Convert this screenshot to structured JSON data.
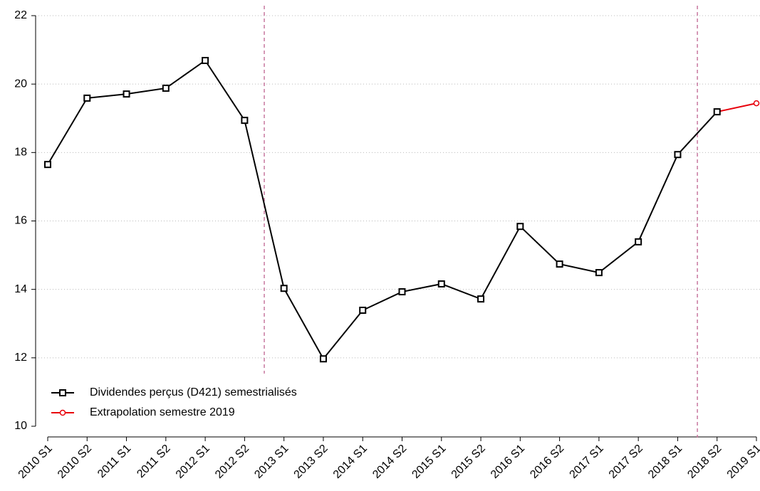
{
  "chart_data": {
    "type": "line",
    "categories": [
      "2010 S1",
      "2010 S2",
      "2011 S1",
      "2011 S2",
      "2012 S1",
      "2012 S2",
      "2013 S1",
      "2013 S2",
      "2014 S1",
      "2014 S2",
      "2015 S1",
      "2015 S2",
      "2016 S1",
      "2016 S2",
      "2017 S1",
      "2017 S2",
      "2018 S1",
      "2018 S2",
      "2019 S1"
    ],
    "series": [
      {
        "name": "Dividendes perçus (D421) semestrialisés",
        "color": "#000000",
        "marker": "square",
        "values": [
          17.65,
          19.59,
          19.71,
          19.88,
          20.69,
          18.94,
          14.03,
          11.97,
          13.39,
          13.93,
          14.16,
          13.72,
          15.84,
          14.74,
          14.49,
          15.39,
          17.94,
          19.19,
          null
        ]
      },
      {
        "name": "Extrapolation semestre 2019",
        "color": "#e8000b",
        "marker": "circle",
        "values": [
          null,
          null,
          null,
          null,
          null,
          null,
          null,
          null,
          null,
          null,
          null,
          null,
          null,
          null,
          null,
          null,
          null,
          19.19,
          19.44
        ]
      }
    ],
    "ylim": [
      10,
      22
    ],
    "yticks": [
      10,
      12,
      14,
      16,
      18,
      20,
      22
    ],
    "grid": true,
    "legend": "lower left"
  }
}
